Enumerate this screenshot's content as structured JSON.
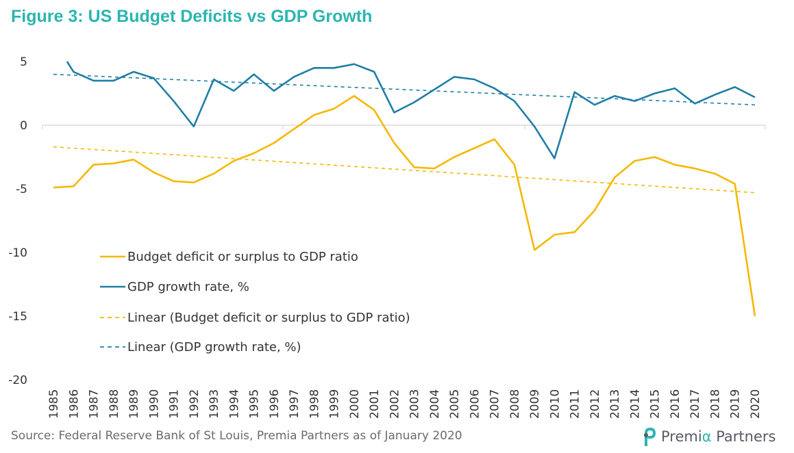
{
  "title": "Figure 3: US Budget Deficits vs GDP Growth",
  "source": "Source: Federal Reserve Bank of St Louis, Premia Partners as of January 2020",
  "logo": {
    "prefix": "Premi",
    "alpha": "α",
    "suffix": " Partners",
    "icon": "premia-logo-icon"
  },
  "colors": {
    "budget": "#f5b800",
    "gdp": "#1e7ea6",
    "budget_trend": "#f5b800",
    "gdp_trend": "#1e7ea6",
    "title": "#2bb5b0"
  },
  "chart_data": {
    "type": "line",
    "ylim": [
      -20,
      5
    ],
    "yticks": [
      5,
      0,
      -5,
      -10,
      -15,
      -20
    ],
    "categories": [
      "1985",
      "1986",
      "1987",
      "1988",
      "1989",
      "1990",
      "1991",
      "1992",
      "1993",
      "1994",
      "1995",
      "1996",
      "1997",
      "1998",
      "1999",
      "2000",
      "2001",
      "2002",
      "2003",
      "2004",
      "2005",
      "2006",
      "2007",
      "2008",
      "2009",
      "2010",
      "2011",
      "2012",
      "2013",
      "2014",
      "2015",
      "2016",
      "2017",
      "2018",
      "2019",
      "2020"
    ],
    "series": [
      {
        "name": "Budget deficit or surplus to GDP ratio",
        "style": "solid",
        "values": [
          -4.9,
          -4.8,
          -3.1,
          -3.0,
          -2.7,
          -3.7,
          -4.4,
          -4.5,
          -3.8,
          -2.8,
          -2.2,
          -1.4,
          -0.3,
          0.8,
          1.3,
          2.3,
          1.2,
          -1.4,
          -3.3,
          -3.4,
          -2.5,
          -1.8,
          -1.1,
          -3.1,
          -9.8,
          -8.6,
          -8.4,
          -6.7,
          -4.1,
          -2.8,
          -2.5,
          -3.1,
          -3.4,
          -3.8,
          -4.6,
          -15.0
        ]
      },
      {
        "name": "GDP growth rate, %",
        "style": "solid",
        "values": [
          null,
          4.2,
          3.5,
          3.5,
          4.2,
          3.7,
          1.9,
          -0.1,
          3.6,
          2.7,
          4.0,
          2.7,
          3.8,
          4.5,
          4.5,
          4.8,
          4.2,
          1.0,
          1.8,
          2.8,
          3.8,
          3.6,
          2.9,
          1.9,
          -0.1,
          -2.6,
          2.6,
          1.6,
          2.3,
          1.9,
          2.5,
          2.9,
          1.7,
          2.4,
          3.0,
          2.2
        ]
      },
      {
        "name": "Linear (Budget deficit or surplus to GDP ratio)",
        "style": "dashed",
        "start": -1.7,
        "end": -5.3
      },
      {
        "name": "Linear (GDP growth rate, %)",
        "style": "dashed",
        "start": 4.0,
        "end": 1.6
      }
    ],
    "gdp_first_point": 5.0,
    "legend": "inside-bottom-left"
  }
}
